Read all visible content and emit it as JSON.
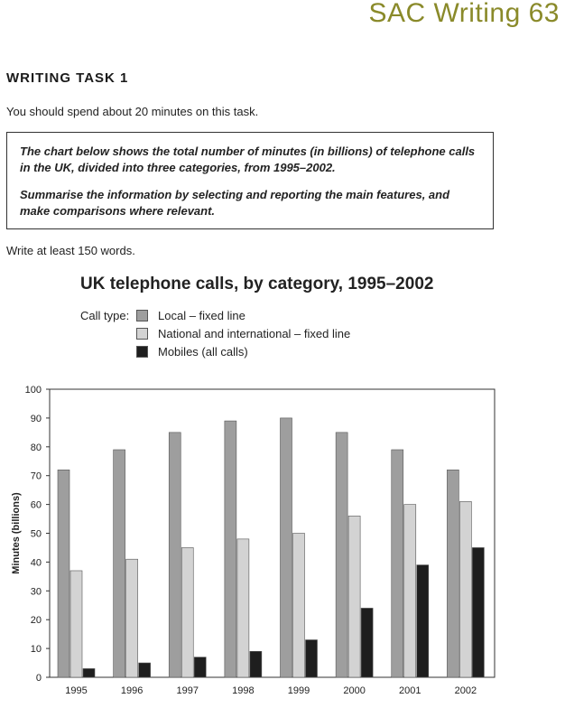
{
  "header": {
    "title": "SAC Writing 63"
  },
  "task": {
    "heading": "WRITING TASK 1",
    "time_note": "You should spend about 20 minutes on this task.",
    "prompt_line1": "The chart below shows the total number of minutes (in billions) of telephone calls in the UK, divided into three categories, from 1995–2002.",
    "prompt_line2": "Summarise the information by selecting and reporting the main features, and make comparisons where relevant.",
    "words_note": "Write at least 150 words."
  },
  "legend": {
    "label": "Call type:",
    "items": [
      {
        "name": "Local – fixed line",
        "color": "#9e9e9e"
      },
      {
        "name": "National and international – fixed line",
        "color": "#d3d3d3"
      },
      {
        "name": "Mobiles (all calls)",
        "color": "#1e1e1e"
      }
    ]
  },
  "chart_data": {
    "type": "bar",
    "title": "UK telephone calls, by category, 1995–2002",
    "xlabel": "",
    "ylabel": "Minutes (billions)",
    "ylim": [
      0,
      100
    ],
    "yticks": [
      0,
      10,
      20,
      30,
      40,
      50,
      60,
      70,
      80,
      90,
      100
    ],
    "categories": [
      "1995",
      "1996",
      "1997",
      "1998",
      "1999",
      "2000",
      "2001",
      "2002"
    ],
    "series": [
      {
        "name": "Local – fixed line",
        "color": "#9e9e9e",
        "values": [
          72,
          79,
          85,
          89,
          90,
          85,
          79,
          72
        ]
      },
      {
        "name": "National and international – fixed line",
        "color": "#d3d3d3",
        "values": [
          37,
          41,
          45,
          48,
          50,
          56,
          60,
          61
        ]
      },
      {
        "name": "Mobiles (all calls)",
        "color": "#1e1e1e",
        "values": [
          3,
          5,
          7,
          9,
          13,
          24,
          39,
          45
        ]
      }
    ],
    "grid": false,
    "legend_position": "top-left"
  }
}
